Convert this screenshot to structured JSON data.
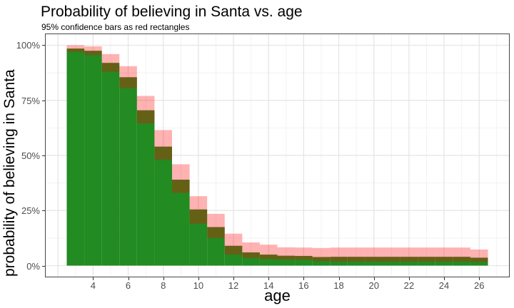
{
  "title": "Probability of believing in Santa vs. age",
  "subtitle": "95% confidence bars as red rectangles",
  "chart_data": {
    "type": "bar",
    "title": "Probability of believing in Santa vs. age",
    "subtitle": "95% confidence bars as red rectangles",
    "xlabel": "age",
    "ylabel": "probability of believing in Santa",
    "x": [
      3,
      4,
      5,
      6,
      7,
      8,
      9,
      10,
      11,
      12,
      13,
      14,
      15,
      16,
      17,
      18,
      19,
      20,
      21,
      22,
      23,
      24,
      25,
      26
    ],
    "series": [
      {
        "name": "estimate_pct",
        "values": [
          98.5,
          97.5,
          92,
          85.5,
          70.5,
          54,
          39,
          25.5,
          17.5,
          9,
          6,
          5,
          4.5,
          4.4,
          3.9,
          4,
          4,
          4,
          4,
          4,
          4,
          4,
          4,
          3.6
        ]
      },
      {
        "name": "ci_lower_pct",
        "values": [
          97,
          95.5,
          88,
          80.5,
          64.5,
          48,
          33,
          19,
          12.5,
          5,
          3.5,
          3,
          2.7,
          2.6,
          2,
          1.8,
          1.8,
          1.8,
          1.8,
          1.8,
          1.8,
          1.8,
          1.8,
          1.6
        ]
      },
      {
        "name": "ci_upper_pct",
        "values": [
          100,
          99.5,
          96,
          90.5,
          77,
          61.5,
          46,
          31.5,
          23.5,
          14.5,
          10.5,
          9.5,
          8.3,
          8.2,
          8,
          8.2,
          8.2,
          8.2,
          8.2,
          8.2,
          8.2,
          8.2,
          8.2,
          7.3
        ]
      }
    ],
    "bar_width": 1,
    "xlim": [
      1.3,
      27.7
    ],
    "ylim": [
      -5,
      105
    ],
    "x_ticks": [
      4,
      6,
      8,
      10,
      12,
      14,
      16,
      18,
      20,
      22,
      24,
      26
    ],
    "x_tick_labels": [
      "4",
      "6",
      "8",
      "10",
      "12",
      "14",
      "16",
      "18",
      "20",
      "22",
      "24",
      "26"
    ],
    "x_grid_major": [
      2,
      4,
      6,
      8,
      10,
      12,
      14,
      16,
      18,
      20,
      22,
      24,
      26
    ],
    "x_grid_minor": [
      3,
      5,
      7,
      9,
      11,
      13,
      15,
      17,
      19,
      21,
      23,
      25,
      27
    ],
    "y_ticks": [
      0,
      25,
      50,
      75,
      100
    ],
    "y_tick_labels": [
      "0%",
      "25%",
      "50%",
      "75%",
      "100%"
    ],
    "y_grid_minor": [
      12.5,
      37.5,
      62.5,
      87.5
    ],
    "grid": true,
    "legend": false,
    "colors": {
      "bar_fill": "#228B22",
      "ci_fill": "#FF0000",
      "ci_opacity": 0.3,
      "grid_major": "#E4E4E4",
      "grid_minor": "#F2F2F2",
      "panel_border": "#474747",
      "tick_label": "#4D4D4D",
      "text": "#000000",
      "background": "#FFFFFF"
    }
  }
}
